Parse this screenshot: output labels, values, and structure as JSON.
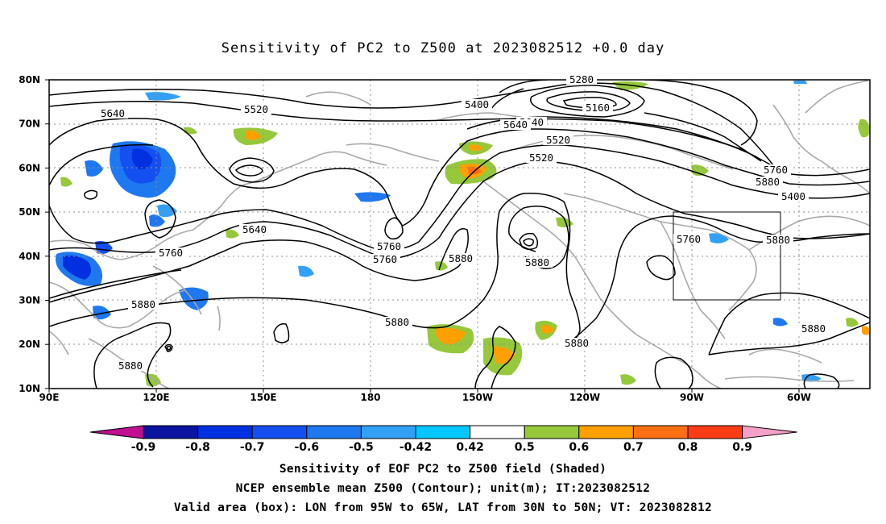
{
  "title": "Sensitivity of PC2 to Z500 at 2023082512 +0.0 day",
  "map": {
    "lat_ticks": [
      "80N",
      "70N",
      "60N",
      "50N",
      "40N",
      "30N",
      "20N",
      "10N"
    ],
    "lon_ticks": [
      "90E",
      "120E",
      "150E",
      "180",
      "150W",
      "120W",
      "90W",
      "60W"
    ],
    "contour_labels": [
      "5280",
      "5160",
      "5400",
      "5520",
      "5640",
      "5760",
      "5880",
      "5400",
      "5520",
      "5640",
      "5640",
      "5520",
      "5760",
      "5640",
      "5760",
      "5880",
      "5880",
      "5760",
      "5880",
      "5880",
      "5880",
      "5880",
      "5760",
      "5880",
      "5880"
    ],
    "valid_box": {
      "lon_west": -95,
      "lon_east": -65,
      "lat_south": 30,
      "lat_north": 50
    }
  },
  "colorbar": {
    "labels": [
      "-0.9",
      "-0.8",
      "-0.7",
      "-0.6",
      "-0.5",
      "-0.42",
      "0.42",
      "0.5",
      "0.6",
      "0.7",
      "0.8",
      "0.9"
    ],
    "colors": [
      "#c0108f",
      "#0a14a0",
      "#0030e0",
      "#1450f0",
      "#1e78f0",
      "#32a0f5",
      "#00c8ff",
      "#ffffff",
      "#96c83c",
      "#ffa000",
      "#ff6e14",
      "#ff3c14",
      "#ff0000",
      "#f5a0c8"
    ]
  },
  "captions": [
    "Sensitivity of EOF PC2 to Z500 field (Shaded)",
    "NCEP ensemble mean Z500 (Contour); unit(m); IT:2023082512",
    "Valid area (box): LON from 95W to 65W, LAT from 30N to 50N; VT: 2023082812"
  ]
}
